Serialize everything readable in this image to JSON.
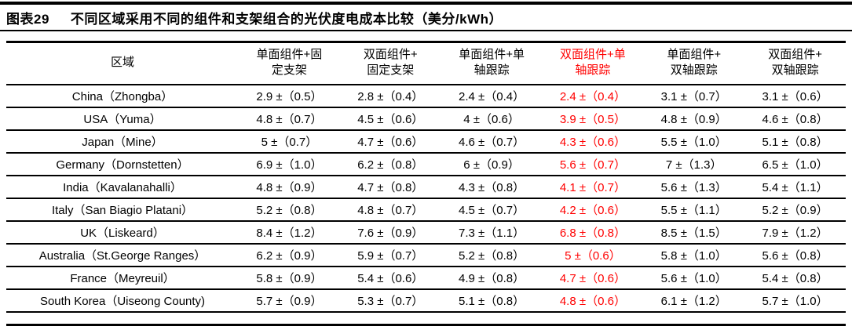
{
  "title": {
    "figure_label": "图表29",
    "text": "不同区域采用不同的组件和支架组合的光伏度电成本比较（美分/kWh）"
  },
  "colors": {
    "text": "#000000",
    "highlight": "#ff0000",
    "rule": "#000000",
    "background": "#ffffff"
  },
  "table": {
    "region_header": "区域",
    "column_headers": [
      {
        "line1": "单面组件+固",
        "line2": "定支架",
        "highlight": false
      },
      {
        "line1": "双面组件+",
        "line2": "固定支架",
        "highlight": false
      },
      {
        "line1": "单面组件+单",
        "line2": "轴跟踪",
        "highlight": false
      },
      {
        "line1": "双面组件+单",
        "line2": "轴跟踪",
        "highlight": true
      },
      {
        "line1": "单面组件+",
        "line2": "双轴跟踪",
        "highlight": false
      },
      {
        "line1": "双面组件+",
        "line2": "双轴跟踪",
        "highlight": false
      }
    ],
    "rows": [
      {
        "region": "China（Zhongba）",
        "values": [
          "2.9 ±（0.5）",
          "2.8 ±（0.4）",
          "2.4 ±（0.4）",
          "2.4 ±（0.4）",
          "3.1 ±（0.7）",
          "3.1 ±（0.6）"
        ]
      },
      {
        "region": "USA（Yuma）",
        "values": [
          "4.8 ±（0.7）",
          "4.5 ±（0.6）",
          "4 ±（0.6）",
          "3.9 ±（0.5）",
          "4.8 ±（0.9）",
          "4.6 ±（0.8）"
        ]
      },
      {
        "region": "Japan（Mine）",
        "values": [
          "5 ±（0.7）",
          "4.7 ±（0.6）",
          "4.6 ±（0.7）",
          "4.3 ±（0.6）",
          "5.5 ±（1.0）",
          "5.1 ±（0.8）"
        ]
      },
      {
        "region": "Germany（Dornstetten）",
        "values": [
          "6.9 ±（1.0）",
          "6.2 ±（0.8）",
          "6 ±（0.9）",
          "5.6 ±（0.7）",
          "7 ±（1.3）",
          "6.5 ±（1.0）"
        ]
      },
      {
        "region": "India（Kavalanahalli）",
        "values": [
          "4.8 ±（0.9）",
          "4.7 ±（0.8）",
          "4.3 ±（0.8）",
          "4.1 ±（0.7）",
          "5.6 ±（1.3）",
          "5.4 ±（1.1）"
        ]
      },
      {
        "region": "Italy（San Biagio Platani）",
        "values": [
          "5.2 ±（0.8）",
          "4.8 ±（0.7）",
          "4.5 ±（0.7）",
          "4.2 ±（0.6）",
          "5.5 ±（1.1）",
          "5.2 ±（0.9）"
        ]
      },
      {
        "region": "UK（Liskeard）",
        "values": [
          "8.4 ±（1.2）",
          "7.6 ±（0.9）",
          "7.3 ±（1.1）",
          "6.8 ±（0.8）",
          "8.5 ±（1.5）",
          "7.9 ±（1.2）"
        ]
      },
      {
        "region": "Australia（St.George Ranges）",
        "values": [
          "6.2 ±（0.9）",
          "5.9 ±（0.7）",
          "5.2 ±（0.8）",
          "5 ±（0.6）",
          "5.8 ±（1.0）",
          "5.6 ±（0.8）"
        ]
      },
      {
        "region": "France（Meyreuil）",
        "values": [
          "5.8 ±（0.9）",
          "5.4 ±（0.6）",
          "4.9 ±（0.8）",
          "4.7 ±（0.6）",
          "5.6 ±（1.0）",
          "5.4 ±（0.8）"
        ]
      },
      {
        "region": "South Korea（Uiseong County)",
        "values": [
          "5.7 ±（0.9）",
          "5.3 ±（0.7）",
          "5.1 ±（0.8）",
          "4.8 ±（0.6）",
          "6.1 ±（1.2）",
          "5.7 ±（1.0）"
        ]
      }
    ]
  }
}
